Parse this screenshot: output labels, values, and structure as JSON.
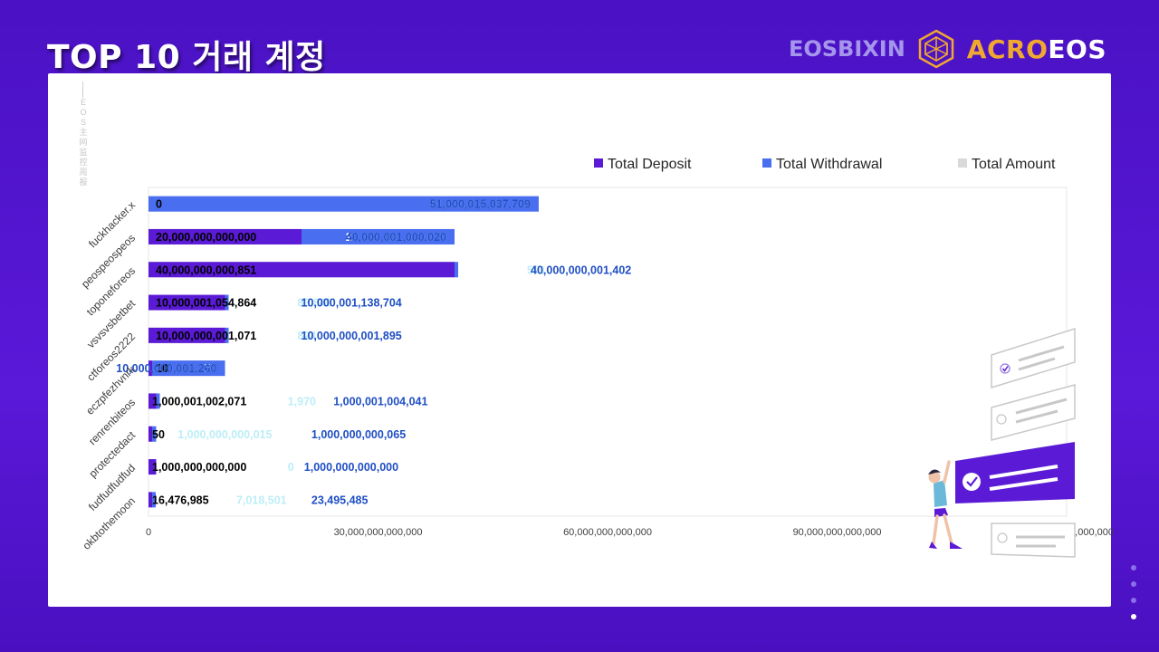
{
  "header": {
    "title": "TOP 10 거래 계정",
    "brand_left": "EOSBIXIN",
    "brand_acro": "ACRO",
    "brand_eos": "EOS"
  },
  "watermark": "EOS主网监控周报",
  "colors": {
    "deposit": "#5b1bd6",
    "withdrawal": "#4a6ef0",
    "total": "#d9d9d9",
    "label_total": "#1f4fc4",
    "label_light": "#bdeef7",
    "label_dark": "#000000",
    "label_white": "#ffffff",
    "illustration": "#5b1bd6"
  },
  "chart_data": {
    "type": "bar",
    "orientation": "horizontal",
    "stacked": false,
    "xlim": [
      0,
      120000000000000
    ],
    "x_ticks": [
      "0",
      "30,000,000,000,000",
      "60,000,000,000,000",
      "90,000,000,000,000",
      "120,000,000,000,000"
    ],
    "legend_position": "top-right",
    "categories": [
      "fuckhacker.x",
      "peospeospeos",
      "toponeforeos",
      "vsvsvsbetbet",
      "ctforeos2222",
      "eczpfezhvnrk",
      "renrenbiteos",
      "protectedact",
      "fudfudfudfud",
      "okbtothemoon"
    ],
    "series": [
      {
        "name": "Total Deposit",
        "values": [
          0,
          20000000000000,
          40000000000851,
          10000001054864,
          10000000001071,
          10,
          1000001002071,
          50,
          1000000000000,
          16476985
        ],
        "labels": [
          "0",
          "20,000,000,000,000",
          "40,000,000,000,851",
          "10,000,001,054,864",
          "10,000,000,001,071",
          "10",
          "1,000,001,002,071",
          "50",
          "1,000,000,000,000",
          "16,476,985"
        ]
      },
      {
        "name": "Total Withdrawal",
        "values": [
          51000015037709,
          20000001000020,
          551,
          83840,
          824,
          10000000001250,
          1970,
          1000000000015,
          0,
          7018501
        ],
        "labels": [
          "51,000,015,037,709",
          "20,000,001,000,020",
          "551",
          "83,840",
          "824",
          "10,000,000,001,250",
          "1,970",
          "1,000,000,000,015",
          "0",
          "7,018,501"
        ]
      },
      {
        "name": "Total Amount",
        "values": [
          51000015037709,
          40000001000020,
          40000000001402,
          10000001138704,
          10000000001895,
          10000000001260,
          1000001004041,
          1000000000065,
          1000000000000,
          23495485
        ],
        "labels": [
          "51,000,015,037,709",
          "40,000,001,000,020",
          "40,000,000,001,402",
          "10,000,001,138,704",
          "10,000,000,001,895",
          "10,000,000,001,260",
          "1,000,001,004,041",
          "1,000,000,000,065",
          "1,000,000,000,000",
          "23,495,485"
        ]
      }
    ]
  }
}
